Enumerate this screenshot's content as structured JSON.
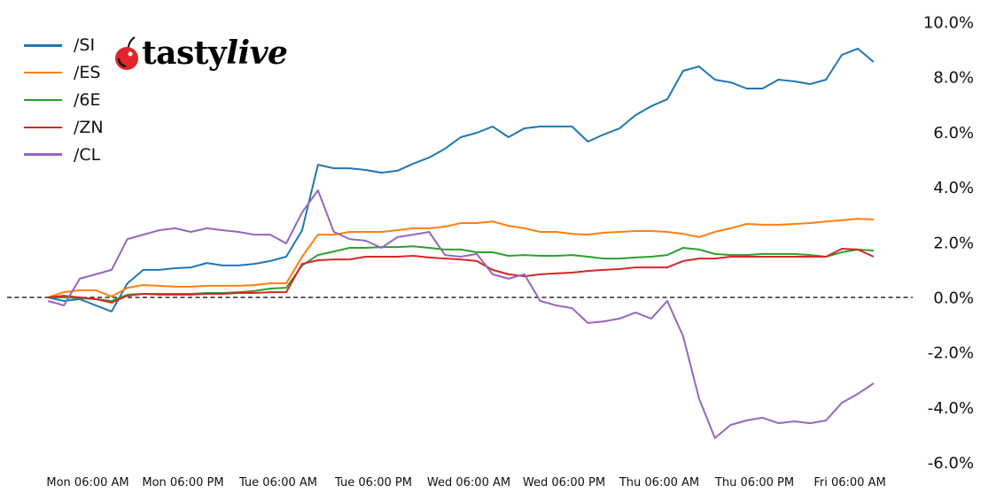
{
  "logo": {
    "text": "tastylive",
    "brand_color": "#e0262b"
  },
  "chart_data": {
    "type": "line",
    "title": "",
    "xlabel": "",
    "ylabel": "",
    "y_axis_position": "right",
    "y_unit": "%",
    "ylim": [
      -6.5,
      10.5
    ],
    "yticks": [
      10,
      8,
      6,
      4,
      2,
      0,
      -2,
      -4,
      -6
    ],
    "ytick_labels": [
      "10.0%",
      "8.0%",
      "6.0%",
      "4.0%",
      "2.0%",
      "0.0%",
      "-2.0%",
      "-4.0%",
      "-6.0%"
    ],
    "xticks": [
      "Mon 06:00",
      "Mon 18:00",
      "Tue 06:00",
      "Tue 18:00",
      "Wed 06:00",
      "Wed 18:00",
      "Thu 06:00",
      "Thu 18:00",
      "Fri 06:00"
    ],
    "xtick_labels": [
      "Mon 06:00 AM",
      "Mon 06:00 PM",
      "Tue 06:00 AM",
      "Tue 06:00 PM",
      "Wed 06:00 AM",
      "Wed 06:00 PM",
      "Thu 06:00 AM",
      "Thu 06:00 PM",
      "Fri 06:00 AM"
    ],
    "grid": false,
    "zero_line": {
      "value": 0,
      "style": "dashed",
      "color": "#000000"
    },
    "legend_position": "top-left",
    "x": [
      "Mon 01:00",
      "Mon 03:00",
      "Mon 05:00",
      "Mon 07:00",
      "Mon 09:00",
      "Mon 11:00",
      "Mon 13:00",
      "Mon 15:00",
      "Mon 17:00",
      "Mon 19:00",
      "Mon 21:00",
      "Mon 23:00",
      "Tue 01:00",
      "Tue 03:00",
      "Tue 05:00",
      "Tue 07:00",
      "Tue 09:00",
      "Tue 11:00",
      "Tue 13:00",
      "Tue 15:00",
      "Tue 17:00",
      "Tue 19:00",
      "Tue 21:00",
      "Tue 23:00",
      "Wed 01:00",
      "Wed 03:00",
      "Wed 05:00",
      "Wed 07:00",
      "Wed 09:00",
      "Wed 11:00",
      "Wed 13:00",
      "Wed 15:00",
      "Wed 17:00",
      "Wed 19:00",
      "Wed 21:00",
      "Wed 23:00",
      "Thu 01:00",
      "Thu 03:00",
      "Thu 05:00",
      "Thu 07:00",
      "Thu 09:00",
      "Thu 11:00",
      "Thu 13:00",
      "Thu 15:00",
      "Thu 17:00",
      "Thu 19:00",
      "Thu 21:00",
      "Thu 23:00",
      "Fri 01:00",
      "Fri 03:00",
      "Fri 05:00",
      "Fri 07:00",
      "Fri 09:00"
    ],
    "series": [
      {
        "name": "/SI",
        "color": "#1f77b4",
        "values": [
          0,
          -0.13,
          -0.06,
          -0.29,
          -0.51,
          0.51,
          1.0,
          1.0,
          1.06,
          1.09,
          1.25,
          1.16,
          1.16,
          1.22,
          1.32,
          1.48,
          2.44,
          4.82,
          4.69,
          4.69,
          4.63,
          4.53,
          4.6,
          4.86,
          5.08,
          5.4,
          5.82,
          5.98,
          6.21,
          5.82,
          6.14,
          6.21,
          6.21,
          6.21,
          5.66,
          5.92,
          6.14,
          6.62,
          6.95,
          7.2,
          8.23,
          8.39,
          7.91,
          7.81,
          7.59,
          7.59,
          7.91,
          7.85,
          7.75,
          7.91,
          8.81,
          9.04,
          8.55
        ]
      },
      {
        "name": "/ES",
        "color": "#ff7f0e",
        "values": [
          0,
          0.19,
          0.26,
          0.26,
          0.03,
          0.35,
          0.45,
          0.42,
          0.39,
          0.39,
          0.42,
          0.42,
          0.42,
          0.45,
          0.51,
          0.51,
          1.48,
          2.28,
          2.28,
          2.38,
          2.38,
          2.38,
          2.44,
          2.51,
          2.51,
          2.57,
          2.7,
          2.7,
          2.76,
          2.6,
          2.51,
          2.38,
          2.38,
          2.31,
          2.28,
          2.35,
          2.38,
          2.41,
          2.41,
          2.38,
          2.31,
          2.19,
          2.38,
          2.51,
          2.67,
          2.64,
          2.64,
          2.67,
          2.7,
          2.76,
          2.8,
          2.86,
          2.83
        ]
      },
      {
        "name": "/6E",
        "color": "#2ca02c",
        "values": [
          0,
          0,
          -0.03,
          -0.06,
          -0.13,
          0.1,
          0.13,
          0.13,
          0.13,
          0.13,
          0.16,
          0.16,
          0.19,
          0.23,
          0.32,
          0.35,
          1.16,
          1.54,
          1.67,
          1.8,
          1.8,
          1.83,
          1.83,
          1.86,
          1.8,
          1.74,
          1.74,
          1.64,
          1.64,
          1.51,
          1.54,
          1.51,
          1.51,
          1.54,
          1.48,
          1.41,
          1.41,
          1.45,
          1.48,
          1.54,
          1.8,
          1.74,
          1.58,
          1.54,
          1.54,
          1.58,
          1.58,
          1.58,
          1.54,
          1.48,
          1.64,
          1.74,
          1.7
        ]
      },
      {
        "name": "/ZN",
        "color": "#d62728",
        "values": [
          0,
          0.06,
          0,
          -0.06,
          -0.19,
          0.06,
          0.13,
          0.1,
          0.1,
          0.1,
          0.13,
          0.13,
          0.16,
          0.16,
          0.19,
          0.19,
          1.22,
          1.35,
          1.38,
          1.38,
          1.48,
          1.48,
          1.48,
          1.51,
          1.45,
          1.41,
          1.38,
          1.32,
          1.0,
          0.84,
          0.77,
          0.84,
          0.87,
          0.9,
          0.96,
          1.0,
          1.03,
          1.09,
          1.09,
          1.09,
          1.32,
          1.41,
          1.41,
          1.48,
          1.48,
          1.48,
          1.48,
          1.48,
          1.48,
          1.48,
          1.77,
          1.74,
          1.48
        ]
      },
      {
        "name": "/CL",
        "color": "#9467bd",
        "values": [
          -0.13,
          -0.29,
          0.68,
          0.84,
          1.0,
          2.12,
          2.28,
          2.44,
          2.51,
          2.38,
          2.51,
          2.44,
          2.38,
          2.28,
          2.28,
          1.96,
          3.09,
          3.89,
          2.38,
          2.12,
          2.06,
          1.8,
          2.19,
          2.28,
          2.38,
          1.54,
          1.48,
          1.58,
          0.84,
          0.68,
          0.84,
          -0.13,
          -0.29,
          -0.39,
          -0.93,
          -0.87,
          -0.77,
          -0.55,
          -0.77,
          -0.13,
          -1.41,
          -3.67,
          -5.11,
          -4.63,
          -4.47,
          -4.37,
          -4.57,
          -4.5,
          -4.57,
          -4.47,
          -3.83,
          -3.5,
          -3.12
        ]
      }
    ]
  }
}
